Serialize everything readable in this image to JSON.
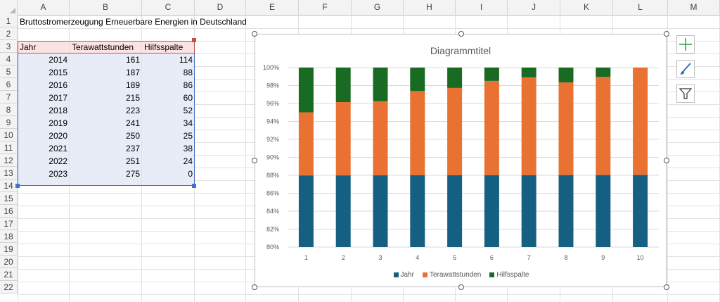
{
  "columns": [
    "A",
    "B",
    "C",
    "D",
    "E",
    "F",
    "G",
    "H",
    "I",
    "J",
    "K",
    "L",
    "M"
  ],
  "rows": [
    "1",
    "2",
    "3",
    "4",
    "5",
    "6",
    "7",
    "8",
    "9",
    "10",
    "11",
    "12",
    "13",
    "14",
    "15",
    "16",
    "17",
    "18",
    "19",
    "20",
    "21",
    "22"
  ],
  "sheet": {
    "title": "Bruttostromerzeugung Erneuerbare Energien in Deutschland",
    "headers": [
      "Jahr",
      "Terawattstunden",
      "Hilfsspalte"
    ],
    "data": [
      [
        "2014",
        "161",
        "114"
      ],
      [
        "2015",
        "187",
        "88"
      ],
      [
        "2016",
        "189",
        "86"
      ],
      [
        "2017",
        "215",
        "60"
      ],
      [
        "2018",
        "223",
        "52"
      ],
      [
        "2019",
        "241",
        "34"
      ],
      [
        "2020",
        "250",
        "25"
      ],
      [
        "2021",
        "237",
        "38"
      ],
      [
        "2022",
        "251",
        "24"
      ],
      [
        "2023",
        "275",
        "0"
      ]
    ]
  },
  "chart_data": {
    "type": "bar",
    "stacked": "percent",
    "title": "Diagrammtitel",
    "categories": [
      "1",
      "2",
      "3",
      "4",
      "5",
      "6",
      "7",
      "8",
      "9",
      "10"
    ],
    "series": [
      {
        "name": "Jahr",
        "color": "#156082",
        "values": [
          2014,
          2015,
          2016,
          2017,
          2018,
          2019,
          2020,
          2021,
          2022,
          2023
        ]
      },
      {
        "name": "Terawattstunden",
        "color": "#e97132",
        "values": [
          161,
          187,
          189,
          215,
          223,
          241,
          250,
          237,
          251,
          275
        ]
      },
      {
        "name": "Hilfsspalte",
        "color": "#196b24",
        "values": [
          114,
          88,
          86,
          60,
          52,
          34,
          25,
          38,
          24,
          0
        ]
      }
    ],
    "ylim": [
      0.8,
      1.0
    ],
    "ticks": [
      "80%",
      "82%",
      "84%",
      "86%",
      "88%",
      "90%",
      "92%",
      "94%",
      "96%",
      "98%",
      "100%"
    ],
    "grid": true,
    "legend": "bottom"
  },
  "side_buttons": [
    "plus-icon",
    "brush-icon",
    "filter-icon"
  ]
}
